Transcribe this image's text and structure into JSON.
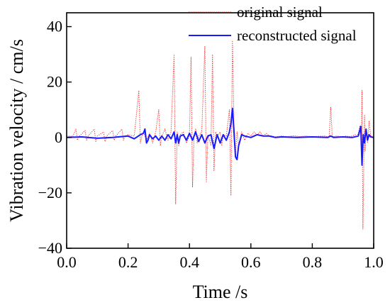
{
  "chart_data": {
    "type": "line",
    "title": "",
    "xlabel": "Time /s",
    "ylabel": "Vibration velocity / cm/s",
    "xlim": [
      0.0,
      1.0
    ],
    "ylim": [
      -40,
      45
    ],
    "xticks": [
      "0.0",
      "0.2",
      "0.4",
      "0.6",
      "0.8",
      "1.0"
    ],
    "yticks": [
      "-40",
      "-20",
      "0",
      "20",
      "40"
    ],
    "grid": false,
    "legend_position": "top-right",
    "series": [
      {
        "name": "original signal",
        "color": "#ff2020",
        "style": "dotted",
        "x": [
          0.0,
          0.02,
          0.03,
          0.035,
          0.04,
          0.06,
          0.065,
          0.07,
          0.09,
          0.095,
          0.1,
          0.12,
          0.125,
          0.13,
          0.15,
          0.155,
          0.16,
          0.18,
          0.185,
          0.19,
          0.2,
          0.22,
          0.235,
          0.24,
          0.245,
          0.25,
          0.26,
          0.27,
          0.28,
          0.29,
          0.3,
          0.305,
          0.31,
          0.32,
          0.33,
          0.34,
          0.35,
          0.355,
          0.36,
          0.365,
          0.37,
          0.38,
          0.39,
          0.4,
          0.405,
          0.41,
          0.415,
          0.42,
          0.425,
          0.43,
          0.44,
          0.45,
          0.455,
          0.46,
          0.47,
          0.475,
          0.48,
          0.485,
          0.49,
          0.5,
          0.505,
          0.51,
          0.52,
          0.53,
          0.535,
          0.54,
          0.545,
          0.55,
          0.555,
          0.56,
          0.57,
          0.58,
          0.59,
          0.6,
          0.61,
          0.62,
          0.63,
          0.64,
          0.65,
          0.66,
          0.67,
          0.68,
          0.7,
          0.72,
          0.74,
          0.76,
          0.78,
          0.8,
          0.82,
          0.84,
          0.855,
          0.86,
          0.865,
          0.87,
          0.88,
          0.9,
          0.91,
          0.92,
          0.93,
          0.94,
          0.945,
          0.95,
          0.955,
          0.96,
          0.962,
          0.965,
          0.97,
          0.972,
          0.975,
          0.98,
          0.985,
          0.99,
          1.0
        ],
        "y": [
          0.5,
          0.4,
          3,
          -1,
          0.3,
          2.5,
          -1,
          0.5,
          3,
          -1.5,
          0.5,
          2,
          -1.5,
          0.5,
          2.5,
          -1,
          0.5,
          3,
          -1,
          0.5,
          1,
          0.5,
          17,
          -2,
          0.5,
          2,
          -1,
          1.5,
          -2,
          2,
          10,
          -3,
          0.5,
          3,
          -1,
          2,
          30,
          -24,
          2,
          -3,
          1,
          2,
          -2,
          0.5,
          29,
          -18,
          1,
          3,
          -2,
          0.5,
          2,
          33,
          -16,
          1,
          -3,
          30,
          -12,
          2,
          0.5,
          2,
          -3,
          1,
          0.5,
          10,
          -21,
          35,
          5,
          -6,
          2,
          -3,
          2,
          -1,
          1.5,
          0.5,
          2,
          1,
          2,
          0.5,
          1.5,
          0.5,
          0.5,
          0.2,
          0.5,
          0.3,
          0.6,
          0.3,
          0.5,
          0.3,
          0.4,
          0.5,
          0.2,
          11,
          0.5,
          0.3,
          0.5,
          0.2,
          0.5,
          0.3,
          0.5,
          1,
          0.5,
          1.5,
          4,
          -2,
          17,
          -33,
          8,
          -5,
          3,
          -2,
          6,
          0.5,
          0.3
        ]
      },
      {
        "name": "reconstructed signal",
        "color": "#1a1aff",
        "style": "solid",
        "x": [
          0.0,
          0.05,
          0.1,
          0.15,
          0.2,
          0.22,
          0.24,
          0.25,
          0.255,
          0.26,
          0.265,
          0.27,
          0.28,
          0.29,
          0.3,
          0.31,
          0.32,
          0.33,
          0.34,
          0.35,
          0.355,
          0.36,
          0.365,
          0.37,
          0.38,
          0.39,
          0.4,
          0.41,
          0.42,
          0.43,
          0.44,
          0.45,
          0.46,
          0.47,
          0.48,
          0.49,
          0.5,
          0.51,
          0.52,
          0.53,
          0.535,
          0.54,
          0.545,
          0.55,
          0.555,
          0.56,
          0.57,
          0.58,
          0.6,
          0.62,
          0.64,
          0.66,
          0.68,
          0.7,
          0.75,
          0.8,
          0.85,
          0.86,
          0.87,
          0.9,
          0.93,
          0.95,
          0.958,
          0.962,
          0.966,
          0.97,
          0.975,
          0.98,
          0.985,
          0.99,
          1.0
        ],
        "y": [
          0,
          0.2,
          -0.3,
          0,
          0.5,
          -0.5,
          1,
          1.5,
          3,
          -2,
          -1,
          1,
          -0.5,
          0.5,
          -1,
          0.5,
          -1,
          1,
          -0.5,
          2,
          -2,
          1,
          -2,
          0.5,
          1,
          -1,
          1.5,
          -1,
          2,
          -1.5,
          1,
          -2,
          0.5,
          1,
          -4,
          1,
          -2,
          1,
          -1,
          2,
          5,
          10.5,
          2,
          -7,
          -8,
          -3,
          1,
          0.5,
          0,
          1,
          0.5,
          0.5,
          0,
          0.2,
          0,
          0.2,
          0,
          0.5,
          0,
          0.2,
          0,
          0.5,
          4,
          -10,
          1,
          -2,
          3,
          -1,
          1,
          0.2,
          0
        ]
      }
    ]
  }
}
